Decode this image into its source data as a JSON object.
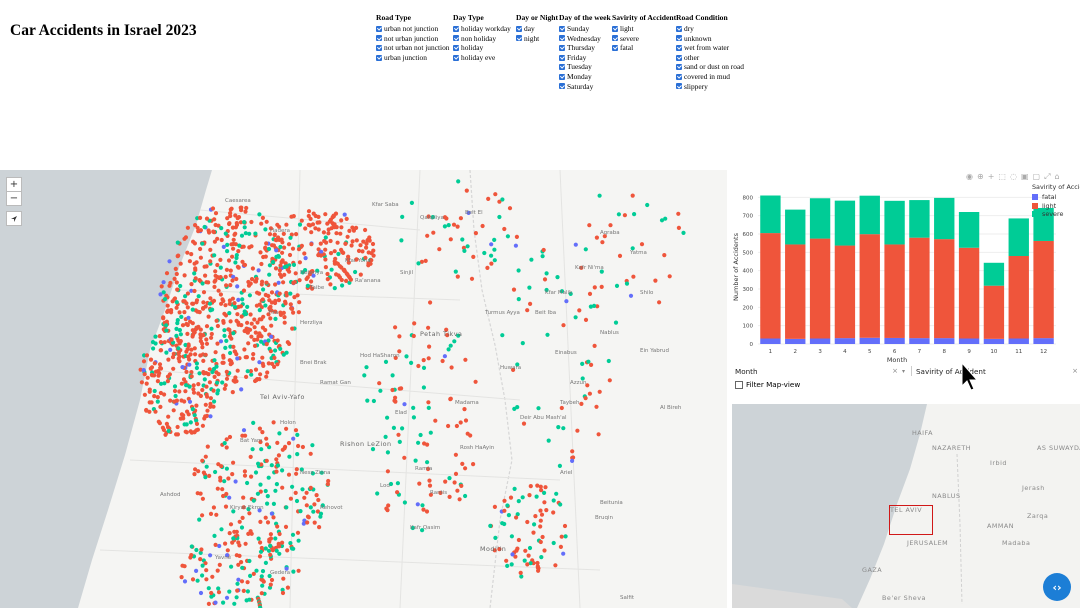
{
  "app": {
    "title": "Car Accidents in Israel 2023"
  },
  "filters": [
    {
      "heading": "Road Type",
      "items": [
        "urban not junction",
        "not urban junction",
        "not urban not junction",
        "urban junction"
      ]
    },
    {
      "heading": "Day Type",
      "items": [
        "holiday workday",
        "non holiday",
        "holiday",
        "holiday eve"
      ]
    },
    {
      "heading": "Day or Night",
      "items": [
        "day",
        "night"
      ]
    },
    {
      "heading": "Day of the week",
      "items": [
        "Sunday",
        "Wednesday",
        "Thursday",
        "Friday",
        "Tuesday",
        "Monday",
        "Saturday"
      ]
    },
    {
      "heading": "Savirity of Accident",
      "items": [
        "light",
        "severe",
        "fatal"
      ]
    },
    {
      "heading": "Road Condition",
      "items": [
        "dry",
        "unknown",
        "wet from water",
        "other",
        "sand or dust on road",
        "covered in mud",
        "slippery"
      ]
    }
  ],
  "map": {
    "controls": {
      "zoom_in": "+",
      "zoom_out": "−"
    },
    "places": [
      "Caesarea",
      "Hadera",
      "Netanya",
      "Kfar Yona",
      "Tira",
      "Taibe",
      "Qalqiliya",
      "Kfar Saba",
      "Ra'anana",
      "Herzliya",
      "Petah Tikva",
      "Hod HaSharon",
      "Tel Aviv-Yafo",
      "Bnei Brak",
      "Ramat Gan",
      "Holon",
      "Bat Yam",
      "Rishon LeZion",
      "Ness Ziona",
      "Rehovot",
      "Lod",
      "Ramla",
      "Modi'in",
      "Ariel",
      "Shilo",
      "Nablus",
      "Beit Iba",
      "Azzun",
      "Yavne",
      "Gedera",
      "Ashdod",
      "Kiryat Ekron",
      "Kafr Qasim",
      "Elad",
      "Rosh HaAyin",
      "Bruqin",
      "Salfit",
      "Al Bireh",
      "Beitunia",
      "Deir Abu Mash'al",
      "Rantis",
      "Kafr Ni'ma",
      "Ein Yabrud",
      "Taybeh",
      "Kfar Malik",
      "Beit El",
      "Sinjil",
      "Turmus Ayya",
      "Aqraba",
      "Yatma",
      "Huwara",
      "Einabus",
      "Madama"
    ],
    "dot_colors": {
      "fatal": "#636efa",
      "light": "#ef553b",
      "severe": "#00cc96"
    }
  },
  "chart_data": {
    "type": "bar",
    "stacked": true,
    "categories": [
      "1",
      "2",
      "3",
      "4",
      "5",
      "6",
      "7",
      "8",
      "9",
      "10",
      "11",
      "12"
    ],
    "series": [
      {
        "name": "fatal",
        "color": "#636efa",
        "values": [
          30,
          28,
          30,
          32,
          34,
          33,
          32,
          32,
          30,
          28,
          30,
          32
        ]
      },
      {
        "name": "light",
        "color": "#ef553b",
        "values": [
          575,
          515,
          545,
          505,
          565,
          510,
          548,
          540,
          495,
          290,
          450,
          530
        ]
      },
      {
        "name": "severe",
        "color": "#00cc96",
        "values": [
          205,
          190,
          220,
          245,
          210,
          238,
          205,
          225,
          195,
          125,
          205,
          180
        ]
      }
    ],
    "xlabel": "Month",
    "ylabel": "Number of Accidents",
    "ylim": [
      0,
      840
    ],
    "yticks": [
      0,
      100,
      200,
      300,
      400,
      500,
      600,
      700,
      800
    ],
    "legend_title": "Savirity of Accid",
    "legend_position": "top-right"
  },
  "controls": {
    "x_select": "Month",
    "color_select": "Savirity of Accident",
    "clear": "×",
    "caret": "▾",
    "filter_label": "Filter Map-view"
  },
  "minimap": {
    "labels": [
      "HAIFA",
      "NAZARETH",
      "AS SUWAYDA",
      "Irbid",
      "Jerash",
      "NABLUS",
      "Zarqa",
      "TEL AVIV",
      "AMMAN",
      "Madaba",
      "JERUSALEM",
      "GAZA",
      "Be'er Sheva"
    ]
  },
  "fab": {
    "label": "‹›"
  }
}
